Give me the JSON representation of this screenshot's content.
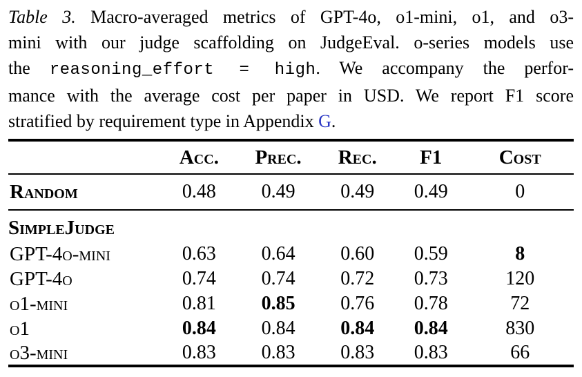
{
  "colors": {
    "text": "#000000",
    "background": "#ffffff",
    "link": "#2936c4"
  },
  "caption": {
    "lines": [
      {
        "justify": true,
        "segments": [
          {
            "t": "Table 3.",
            "style": "italic"
          },
          {
            "t": " Macro-averaged metrics of GPT-4o, o1-mini, o1, and o3-",
            "style": "normal"
          }
        ]
      },
      {
        "justify": true,
        "segments": [
          {
            "t": "mini with our judge scaffolding on JudgeEval. o-series models use",
            "style": "normal"
          }
        ]
      },
      {
        "justify": true,
        "segments": [
          {
            "t": "the ",
            "style": "normal"
          },
          {
            "t": "reasoning_effort = high",
            "style": "code"
          },
          {
            "t": ". We accompany the perfor-",
            "style": "normal"
          }
        ]
      },
      {
        "justify": true,
        "segments": [
          {
            "t": "mance with the average cost per paper in USD. We report F1 score",
            "style": "normal"
          }
        ]
      },
      {
        "justify": false,
        "segments": [
          {
            "t": "stratified by requirement type in Appendix ",
            "style": "normal"
          },
          {
            "t": "G",
            "style": "link"
          },
          {
            "t": ".",
            "style": "normal"
          }
        ]
      }
    ]
  },
  "table": {
    "columns": [
      "",
      "Acc.",
      "Prec.",
      "Rec.",
      "F1",
      "Cost"
    ],
    "rows": [
      {
        "label": "Random",
        "label_bold": true,
        "section": false,
        "first_group": true,
        "rule_after": true,
        "values": [
          "0.48",
          "0.49",
          "0.49",
          "0.49",
          "0"
        ],
        "bold_mask": [
          false,
          false,
          false,
          false,
          false
        ]
      },
      {
        "label": "SimpleJudge",
        "section": true
      },
      {
        "label": "GPT-4o-mini",
        "section": false,
        "values": [
          "0.63",
          "0.64",
          "0.60",
          "0.59",
          "8"
        ],
        "bold_mask": [
          false,
          false,
          false,
          false,
          true
        ]
      },
      {
        "label": "GPT-4o",
        "section": false,
        "values": [
          "0.74",
          "0.74",
          "0.72",
          "0.73",
          "120"
        ],
        "bold_mask": [
          false,
          false,
          false,
          false,
          false
        ]
      },
      {
        "label": "o1-mini",
        "section": false,
        "values": [
          "0.81",
          "0.85",
          "0.76",
          "0.78",
          "72"
        ],
        "bold_mask": [
          false,
          true,
          false,
          false,
          false
        ]
      },
      {
        "label": "o1",
        "section": false,
        "values": [
          "0.84",
          "0.84",
          "0.84",
          "0.84",
          "830"
        ],
        "bold_mask": [
          true,
          false,
          true,
          true,
          false
        ]
      },
      {
        "label": "o3-mini",
        "section": false,
        "values": [
          "0.83",
          "0.83",
          "0.83",
          "0.83",
          "66"
        ],
        "bold_mask": [
          false,
          false,
          false,
          false,
          false
        ]
      }
    ]
  }
}
